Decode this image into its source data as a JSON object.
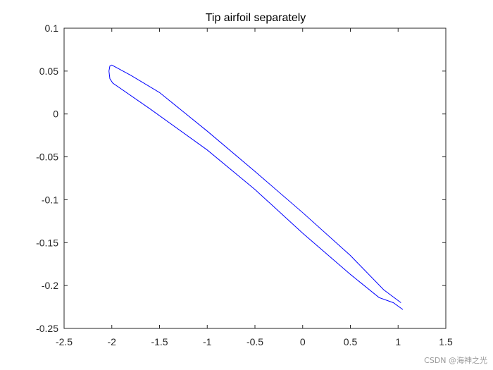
{
  "chart_data": {
    "type": "line",
    "title": "Tip airfoil separately",
    "xlabel": "",
    "ylabel": "",
    "xlim": [
      -2.5,
      1.5
    ],
    "ylim": [
      -0.25,
      0.1
    ],
    "xticks": [
      -2.5,
      -2,
      -1.5,
      -1,
      -0.5,
      0,
      0.5,
      1,
      1.5
    ],
    "xtick_labels": [
      "-2.5",
      "-2",
      "-1.5",
      "-1",
      "-0.5",
      "0",
      "0.5",
      "1",
      "1.5"
    ],
    "yticks": [
      0.1,
      0.05,
      0,
      -0.05,
      -0.1,
      -0.15,
      -0.2,
      -0.25
    ],
    "ytick_labels": [
      "0.1",
      "0.05",
      "0",
      "-0.05",
      "-0.1",
      "-0.15",
      "-0.2",
      "-0.25"
    ],
    "grid": false,
    "series": [
      {
        "color": "#0000ff",
        "x": [
          1.03,
          0.85,
          0.5,
          0.0,
          -0.5,
          -1.0,
          -1.5,
          -1.8,
          -1.95,
          -2.0,
          -2.02,
          -2.03,
          -2.02,
          -1.99,
          -1.6,
          -1.0,
          -0.5,
          0.0,
          0.5,
          0.8,
          0.95,
          1.05
        ],
        "y": [
          -0.22,
          -0.205,
          -0.165,
          -0.115,
          -0.067,
          -0.02,
          0.025,
          0.045,
          0.054,
          0.057,
          0.056,
          0.05,
          0.041,
          0.036,
          0.006,
          -0.042,
          -0.088,
          -0.139,
          -0.187,
          -0.214,
          -0.22,
          -0.228
        ]
      }
    ]
  },
  "watermark": "CSDN @海神之光"
}
